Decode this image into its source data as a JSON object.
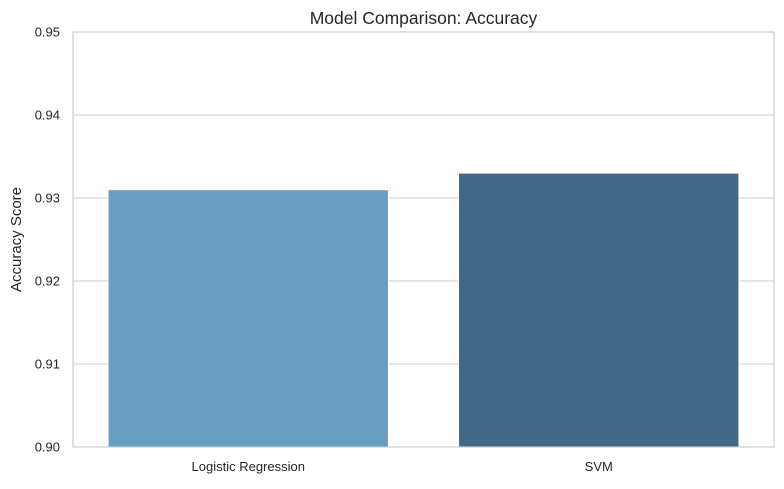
{
  "chart_data": {
    "type": "bar",
    "title": "Model Comparison: Accuracy",
    "xlabel": "",
    "ylabel": "Accuracy Score",
    "categories": [
      "Logistic Regression",
      "SVM"
    ],
    "values": [
      0.931,
      0.933
    ],
    "ylim": [
      0.9,
      0.95
    ],
    "yticks": [
      "0.90",
      "0.91",
      "0.92",
      "0.93",
      "0.94",
      "0.95"
    ],
    "colors": [
      "#6a9ec0",
      "#416985"
    ],
    "grid": true,
    "legend": "none"
  }
}
